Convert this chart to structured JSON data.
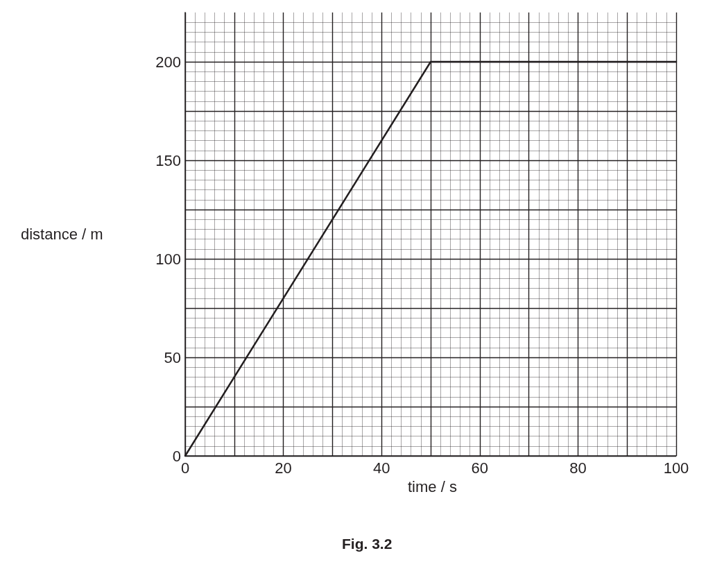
{
  "chart_data": {
    "type": "line",
    "title": "Fig. 3.2",
    "xlabel": "time / s",
    "ylabel": "distance / m",
    "series": [
      {
        "color": "#231f20",
        "x": [
          0,
          50,
          100
        ],
        "values": [
          0,
          200,
          200
        ]
      }
    ],
    "xlim": [
      0,
      100
    ],
    "xticks": [
      0,
      {
        "value": 10,
        "label": null
      },
      20,
      {
        "value": 30,
        "label": null
      },
      40,
      {
        "value": 50,
        "label": null
      },
      60,
      {
        "value": 70,
        "label": null
      },
      80,
      {
        "value": 90,
        "label": null
      },
      100
    ],
    "ylim": [
      0,
      225
    ],
    "yticks": [
      0,
      {
        "value": 25,
        "label": null
      },
      50,
      {
        "value": 75,
        "label": null
      },
      100,
      {
        "value": 125,
        "label": null
      },
      150,
      {
        "value": 175,
        "label": null
      },
      200
    ],
    "grid": true,
    "marker": "none",
    "line_style": "solid"
  }
}
